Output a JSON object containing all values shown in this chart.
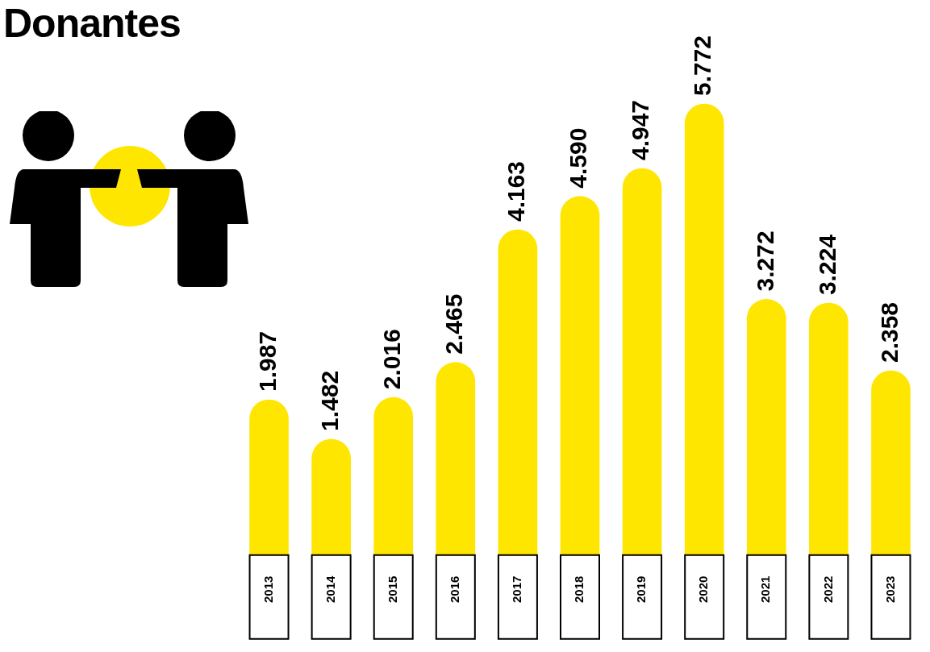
{
  "chart_data": {
    "type": "bar",
    "title": "Donantes",
    "categories": [
      "2013",
      "2014",
      "2015",
      "2016",
      "2017",
      "2018",
      "2019",
      "2020",
      "2021",
      "2022",
      "2023"
    ],
    "values": [
      1987,
      1482,
      2016,
      2465,
      4163,
      4590,
      4947,
      5772,
      3272,
      3224,
      2358
    ],
    "value_labels": [
      "1.987",
      "1.482",
      "2.016",
      "2.465",
      "4.163",
      "4.590",
      "4.947",
      "5.772",
      "3.272",
      "3.224",
      "2.358"
    ],
    "color": "#ffe600",
    "grid": false,
    "legend": false,
    "tick_labels": "x"
  }
}
